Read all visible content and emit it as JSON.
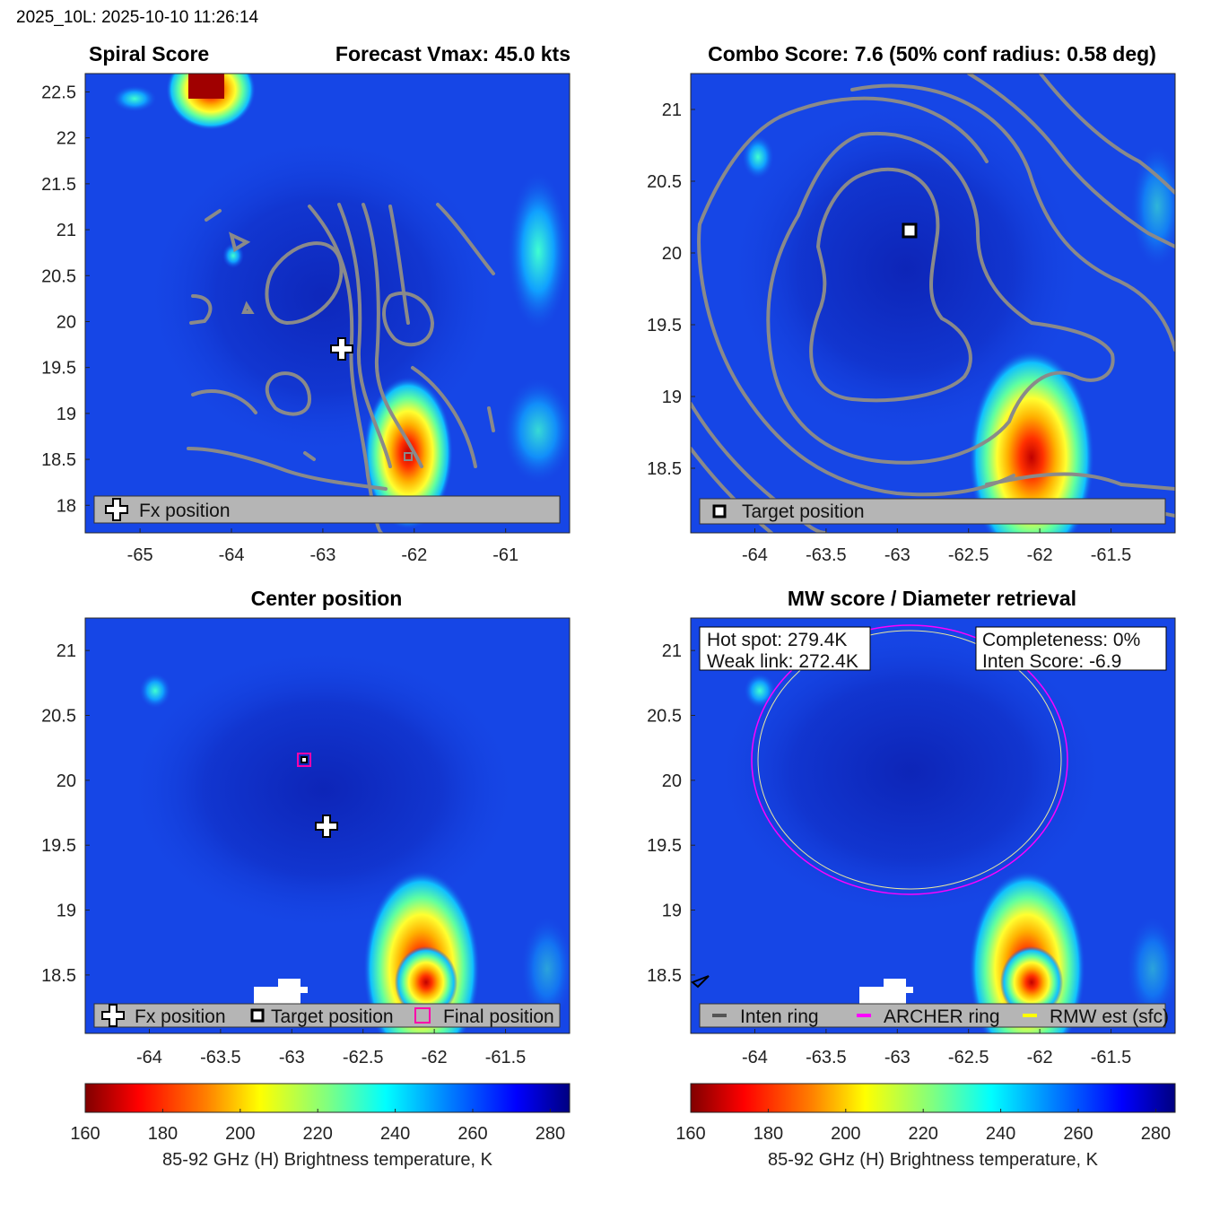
{
  "figure": {
    "header": "2025_10L: 2025-10-10 11:26:14"
  },
  "panels": {
    "spiral": {
      "title_left": "Spiral Score",
      "title_right": "Forecast Vmax: 45.0 kts",
      "legend": [
        "Fx position"
      ],
      "xticks": [
        "-65",
        "-64",
        "-63",
        "-62",
        "-61"
      ],
      "yticks": [
        "22.5",
        "22",
        "21.5",
        "21",
        "20.5",
        "20",
        "19.5",
        "19",
        "18.5",
        "18"
      ]
    },
    "combo": {
      "title": "Combo Score: 7.6  (50% conf radius: 0.58 deg)",
      "legend": [
        "Target position"
      ],
      "xticks": [
        "-64",
        "-63.5",
        "-63",
        "-62.5",
        "-62",
        "-61.5"
      ],
      "yticks": [
        "21",
        "20.5",
        "20",
        "19.5",
        "19",
        "18.5"
      ]
    },
    "center": {
      "title": "Center position",
      "legend": [
        "Fx position",
        "Target position",
        "Final position"
      ],
      "xticks": [
        "-64",
        "-63.5",
        "-63",
        "-62.5",
        "-62",
        "-61.5"
      ],
      "yticks": [
        "21",
        "20.5",
        "20",
        "19.5",
        "19",
        "18.5"
      ]
    },
    "mw": {
      "title": "MW score / Diameter retrieval",
      "box_left": [
        "Hot spot: 279.4K",
        "Weak link: 272.4K"
      ],
      "box_right": [
        "Completeness: 0%",
        "Inten Score: -6.9"
      ],
      "legend": [
        "Inten ring",
        "ARCHER ring",
        "RMW est (sfc)"
      ],
      "xticks": [
        "-64",
        "-63.5",
        "-63",
        "-62.5",
        "-62",
        "-61.5"
      ],
      "yticks": [
        "21",
        "20.5",
        "20",
        "19.5",
        "19",
        "18.5"
      ]
    }
  },
  "colorbar": {
    "ticks": [
      "160",
      "180",
      "200",
      "220",
      "240",
      "260",
      "280"
    ],
    "label": "85-92 GHz (H) Brightness temperature, K",
    "range": [
      160,
      285
    ]
  },
  "colors": {
    "background_field": "#1646e6",
    "contour": "#8a8a8a",
    "archer_ring": "#ff00ff",
    "rmw_est": "#ffff00",
    "inten_ring": "#555555",
    "legend_bg": "#b5b5b5"
  },
  "chart_data": [
    {
      "type": "heatmap",
      "title": "Spiral Score / Forecast Vmax: 45.0 kts",
      "xlim": [
        -65.6,
        -60.3
      ],
      "ylim": [
        17.7,
        22.7
      ],
      "colorbar_range": [
        160,
        285
      ],
      "markers": [
        {
          "name": "Fx position",
          "lon": -62.75,
          "lat": 19.67
        }
      ]
    },
    {
      "type": "heatmap",
      "title": "Combo Score: 7.6 (50% conf radius: 0.58 deg)",
      "xlim": [
        -64.45,
        -61.05
      ],
      "ylim": [
        18.05,
        21.25
      ],
      "markers": [
        {
          "name": "Target position",
          "lon": -62.9,
          "lat": 20.17
        }
      ]
    },
    {
      "type": "heatmap",
      "title": "Center position",
      "xlim": [
        -64.45,
        -61.05
      ],
      "ylim": [
        18.05,
        21.25
      ],
      "markers": [
        {
          "name": "Fx position",
          "lon": -62.75,
          "lat": 19.67
        },
        {
          "name": "Target position",
          "lon": -62.9,
          "lat": 20.17
        },
        {
          "name": "Final position",
          "lon": -62.9,
          "lat": 20.17
        }
      ]
    },
    {
      "type": "heatmap",
      "title": "MW score / Diameter retrieval",
      "xlim": [
        -64.45,
        -61.05
      ],
      "ylim": [
        18.05,
        21.25
      ],
      "hot_spot_K": 279.4,
      "weak_link_K": 272.4,
      "completeness_pct": 0,
      "inten_score": -6.9,
      "archer_ring": {
        "center_lon": -62.9,
        "center_lat": 20.17,
        "radius_deg": 1.07
      }
    }
  ]
}
